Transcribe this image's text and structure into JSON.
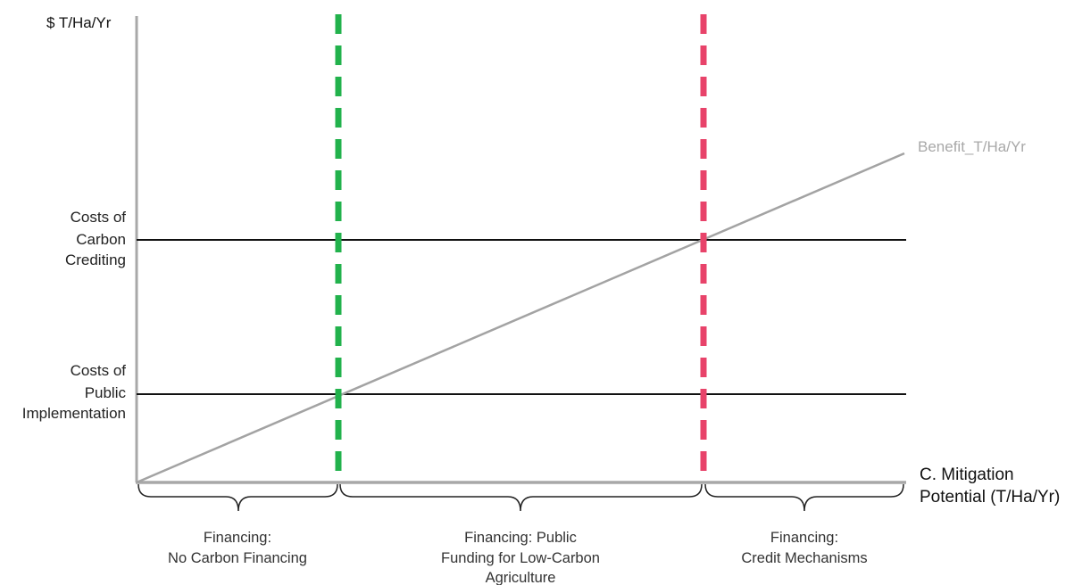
{
  "y_axis": {
    "label": "$ T/Ha/Yr"
  },
  "x_axis": {
    "label_lines": [
      "C. Mitigation",
      "Potential (T/Ha/Yr)"
    ]
  },
  "cost_levels": [
    {
      "name": "carbon-crediting",
      "label_lines": [
        "Costs of",
        "Carbon",
        "Crediting"
      ]
    },
    {
      "name": "public-implementation",
      "label_lines": [
        "Costs of",
        "Public",
        "Implementation"
      ]
    }
  ],
  "benefit_line": {
    "label": "Benefit_T/Ha/Yr"
  },
  "thresholds": [
    {
      "name": "public-threshold",
      "color": "#22b24c"
    },
    {
      "name": "credit-threshold",
      "color": "#e8436a"
    }
  ],
  "regions": [
    {
      "name": "no-carbon-financing",
      "label_lines": [
        "Financing:",
        "No Carbon Financing"
      ]
    },
    {
      "name": "public-funding",
      "label_lines": [
        "Financing: Public",
        "Funding for Low-Carbon",
        "Agriculture"
      ]
    },
    {
      "name": "credit-mechanisms",
      "label_lines": [
        "Financing:",
        "Credit Mechanisms"
      ]
    }
  ],
  "colors": {
    "axis": "#a8a8a8",
    "cost_line": "#111111",
    "benefit_line": "#a3a3a3",
    "brace": "#222222"
  }
}
